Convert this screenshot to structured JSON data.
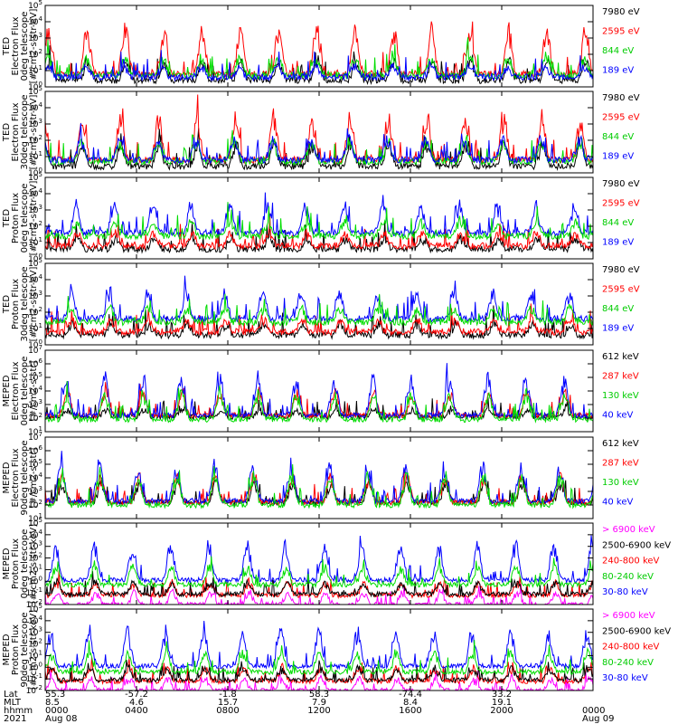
{
  "chart_data": [
    {
      "type": "line",
      "ylabel": [
        "TED",
        "Electron Flux",
        "0deg telescope",
        "[#/cm2-s-str-eV]"
      ],
      "ylog": true,
      "yexp_min": 0,
      "yexp_max": 5,
      "series": [
        {
          "name": "7980 eV",
          "color": "#000000",
          "base": 0.6,
          "amp": 1.4,
          "seed": 11
        },
        {
          "name": "2595 eV",
          "color": "#ff0000",
          "base": 1.0,
          "amp": 3.2,
          "seed": 12
        },
        {
          "name": "844 eV",
          "color": "#00dd00",
          "base": 0.9,
          "amp": 1.3,
          "seed": 13
        },
        {
          "name": "189 eV",
          "color": "#0000ff",
          "base": 0.8,
          "amp": 0.8,
          "seed": 14
        }
      ]
    },
    {
      "type": "line",
      "ylabel": [
        "TED",
        "Electron Flux",
        "30deg telescope",
        "[#/cm2-s-str-eV]"
      ],
      "ylog": true,
      "yexp_min": 0,
      "yexp_max": 5,
      "series": [
        {
          "name": "7980 eV",
          "color": "#000000",
          "base": 0.6,
          "amp": 1.6,
          "seed": 21
        },
        {
          "name": "2595 eV",
          "color": "#ff0000",
          "base": 1.0,
          "amp": 3.0,
          "seed": 22
        },
        {
          "name": "844 eV",
          "color": "#00dd00",
          "base": 0.9,
          "amp": 1.4,
          "seed": 23
        },
        {
          "name": "189 eV",
          "color": "#0000ff",
          "base": 1.0,
          "amp": 1.5,
          "seed": 24
        }
      ]
    },
    {
      "type": "line",
      "ylabel": [
        "TED",
        "Proton Flux",
        "0deg telescope",
        "[#/cm2-s-str-eV]"
      ],
      "ylog": true,
      "yexp_min": 0,
      "yexp_max": 5,
      "series": [
        {
          "name": "7980 eV",
          "color": "#000000",
          "base": 0.8,
          "amp": 0.8,
          "seed": 31
        },
        {
          "name": "2595 eV",
          "color": "#ff0000",
          "base": 1.0,
          "amp": 0.9,
          "seed": 32
        },
        {
          "name": "189 eV",
          "color": "#0000ff",
          "base": 1.8,
          "amp": 2.0,
          "seed": 34
        },
        {
          "name": "844 eV",
          "color": "#00dd00",
          "base": 1.6,
          "amp": 1.0,
          "seed": 33
        }
      ]
    },
    {
      "type": "line",
      "ylabel": [
        "TED",
        "Proton Flux",
        "30deg telescope",
        "[#/cm2-s-str-eV]"
      ],
      "ylog": true,
      "yexp_min": 0,
      "yexp_max": 5,
      "series": [
        {
          "name": "7980 eV",
          "color": "#000000",
          "base": 0.8,
          "amp": 0.8,
          "seed": 41
        },
        {
          "name": "2595 eV",
          "color": "#ff0000",
          "base": 1.0,
          "amp": 0.9,
          "seed": 42
        },
        {
          "name": "189 eV",
          "color": "#0000ff",
          "base": 1.8,
          "amp": 2.0,
          "seed": 44
        },
        {
          "name": "844 eV",
          "color": "#00dd00",
          "base": 1.6,
          "amp": 1.0,
          "seed": 43
        }
      ]
    },
    {
      "type": "line",
      "ylabel": [
        "MEPED",
        "Electron Flux",
        "0deg telescope",
        "[#/cm2-s-str]"
      ],
      "ylog": true,
      "yexp_min": 1,
      "yexp_max": 7,
      "series": [
        {
          "name": "612 keV",
          "color": "#000000",
          "base": 2.3,
          "amp": 0.6,
          "seed": 51
        },
        {
          "name": "287 keV",
          "color": "#ff0000",
          "base": 2.4,
          "amp": 2.0,
          "seed": 52
        },
        {
          "name": "40 keV",
          "color": "#0000ff",
          "base": 2.4,
          "amp": 3.3,
          "seed": 54
        },
        {
          "name": "130 keV",
          "color": "#00dd00",
          "base": 2.1,
          "amp": 2.2,
          "seed": 53
        }
      ]
    },
    {
      "type": "line",
      "ylabel": [
        "MEPED",
        "Electron Flux",
        "90deg telescope",
        "[#/cm2-s-str]"
      ],
      "ylog": true,
      "yexp_min": 1,
      "yexp_max": 7,
      "series": [
        {
          "name": "612 keV",
          "color": "#000000",
          "base": 2.4,
          "amp": 1.6,
          "seed": 61
        },
        {
          "name": "287 keV",
          "color": "#ff0000",
          "base": 2.4,
          "amp": 2.2,
          "seed": 62
        },
        {
          "name": "40 keV",
          "color": "#0000ff",
          "base": 2.5,
          "amp": 3.0,
          "seed": 64
        },
        {
          "name": "130 keV",
          "color": "#00dd00",
          "base": 2.2,
          "amp": 2.6,
          "seed": 63
        }
      ]
    },
    {
      "type": "line",
      "ylabel": [
        "MEPED",
        "Proton Flux",
        "0deg telescope",
        "[#/cm2-s-str-keV]"
      ],
      "ylog": true,
      "yexp_min": -2,
      "yexp_max": 5,
      "series": [
        {
          "name": "> 6900 keV",
          "color": "#ff00ff",
          "base": -1.8,
          "amp": 1.2,
          "seed": 71
        },
        {
          "name": "240-800 keV",
          "color": "#ff0000",
          "base": -1.0,
          "amp": 1.3,
          "seed": 72
        },
        {
          "name": "2500-6900 keV",
          "color": "#000000",
          "base": -0.9,
          "amp": 1.2,
          "seed": 73
        },
        {
          "name": "30-80 keV",
          "color": "#0000ff",
          "base": 0.3,
          "amp": 3.5,
          "seed": 75
        },
        {
          "name": "80-240 keV",
          "color": "#00dd00",
          "base": -0.1,
          "amp": 1.8,
          "seed": 74
        }
      ]
    },
    {
      "type": "line",
      "ylabel": [
        "MEPED",
        "Proton Flux",
        "90deg telescope",
        "[#/cm2-s-str-keV]"
      ],
      "ylog": true,
      "yexp_min": -2,
      "yexp_max": 5,
      "series": [
        {
          "name": "> 6900 keV",
          "color": "#ff00ff",
          "base": -1.8,
          "amp": 1.2,
          "seed": 81
        },
        {
          "name": "240-800 keV",
          "color": "#ff0000",
          "base": -1.0,
          "amp": 1.4,
          "seed": 82
        },
        {
          "name": "2500-6900 keV",
          "color": "#000000",
          "base": -0.9,
          "amp": 1.2,
          "seed": 83
        },
        {
          "name": "30-80 keV",
          "color": "#0000ff",
          "base": 0.3,
          "amp": 3.5,
          "seed": 85
        },
        {
          "name": "80-240 keV",
          "color": "#00dd00",
          "base": -0.2,
          "amp": 1.9,
          "seed": 84
        }
      ]
    }
  ],
  "legends": [
    [
      {
        "text": "7980 eV",
        "color": "#000000"
      },
      {
        "text": "2595 eV",
        "color": "#ff0000"
      },
      {
        "text": "844 eV",
        "color": "#00cc00"
      },
      {
        "text": "189 eV",
        "color": "#0000ff"
      }
    ],
    [
      {
        "text": "7980 eV",
        "color": "#000000"
      },
      {
        "text": "2595 eV",
        "color": "#ff0000"
      },
      {
        "text": "844 eV",
        "color": "#00cc00"
      },
      {
        "text": "189 eV",
        "color": "#0000ff"
      }
    ],
    [
      {
        "text": "7980 eV",
        "color": "#000000"
      },
      {
        "text": "2595 eV",
        "color": "#ff0000"
      },
      {
        "text": "844 eV",
        "color": "#00cc00"
      },
      {
        "text": "189 eV",
        "color": "#0000ff"
      }
    ],
    [
      {
        "text": "7980 eV",
        "color": "#000000"
      },
      {
        "text": "2595 eV",
        "color": "#ff0000"
      },
      {
        "text": "844 eV",
        "color": "#00cc00"
      },
      {
        "text": "189 eV",
        "color": "#0000ff"
      }
    ],
    [
      {
        "text": "612 keV",
        "color": "#000000"
      },
      {
        "text": "287 keV",
        "color": "#ff0000"
      },
      {
        "text": "130 keV",
        "color": "#00cc00"
      },
      {
        "text": "40 keV",
        "color": "#0000ff"
      }
    ],
    [
      {
        "text": "612 keV",
        "color": "#000000"
      },
      {
        "text": "287 keV",
        "color": "#ff0000"
      },
      {
        "text": "130 keV",
        "color": "#00cc00"
      },
      {
        "text": "40 keV",
        "color": "#0000ff"
      }
    ],
    [
      {
        "text": "> 6900 keV",
        "color": "#ff00ff"
      },
      {
        "text": "2500-6900 keV",
        "color": "#000000"
      },
      {
        "text": "240-800 keV",
        "color": "#ff0000"
      },
      {
        "text": "80-240 keV",
        "color": "#00cc00"
      },
      {
        "text": "30-80 keV",
        "color": "#0000ff"
      }
    ],
    [
      {
        "text": "> 6900 keV",
        "color": "#ff00ff"
      },
      {
        "text": "2500-6900 keV",
        "color": "#000000"
      },
      {
        "text": "240-800 keV",
        "color": "#ff0000"
      },
      {
        "text": "80-240 keV",
        "color": "#00cc00"
      },
      {
        "text": "30-80 keV",
        "color": "#0000ff"
      }
    ]
  ],
  "xaxis": {
    "row_labels": [
      "Lat",
      "MLT",
      "hhmm",
      "2021"
    ],
    "ticks": [
      {
        "lat": "55.3",
        "mlt": "8.5",
        "hhmm": "0000",
        "date": "Aug 08"
      },
      {
        "lat": "-57.2",
        "mlt": "4.6",
        "hhmm": "0400",
        "date": ""
      },
      {
        "lat": "-1.8",
        "mlt": "15.7",
        "hhmm": "0800",
        "date": ""
      },
      {
        "lat": "58.3",
        "mlt": "7.9",
        "hhmm": "1200",
        "date": ""
      },
      {
        "lat": "-74.4",
        "mlt": "8.4",
        "hhmm": "1600",
        "date": ""
      },
      {
        "lat": "33.2",
        "mlt": "19.1",
        "hhmm": "2000",
        "date": ""
      },
      {
        "lat": "",
        "mlt": "",
        "hhmm": "0000",
        "date": "Aug 09"
      }
    ]
  }
}
